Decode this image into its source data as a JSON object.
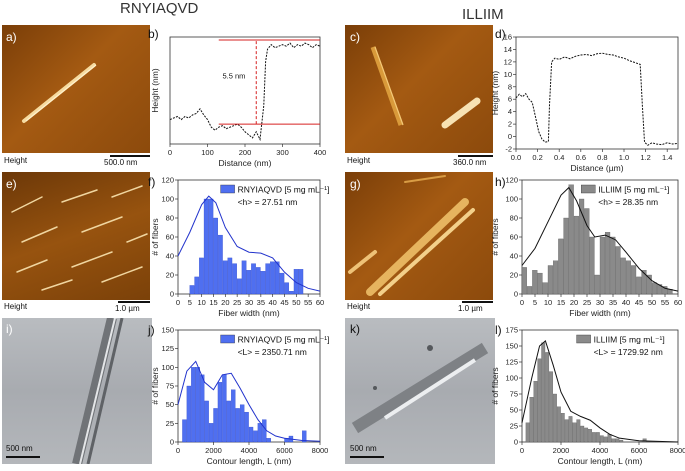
{
  "headers": {
    "left": "RNYIAQVD",
    "right": "ILLIIM"
  },
  "panels": {
    "a": {
      "letter": "a)",
      "caption": "Height",
      "scale": "500.0 nm"
    },
    "b": {
      "letter": "b)",
      "annotation": "5.5 nm"
    },
    "c": {
      "letter": "c)",
      "caption": "Height",
      "scale": "360.0 nm"
    },
    "d": {
      "letter": "d)"
    },
    "e": {
      "letter": "e)",
      "caption": "Height",
      "scale": "1.0 µm"
    },
    "f": {
      "letter": "f)"
    },
    "g": {
      "letter": "g)",
      "caption": "Height",
      "scale": "1.0 µm"
    },
    "h": {
      "letter": "h)"
    },
    "i": {
      "letter": "i)",
      "scale": "500 nm"
    },
    "j": {
      "letter": "j)"
    },
    "k": {
      "letter": "k)",
      "scale": "500 nm"
    },
    "l": {
      "letter": "l)"
    }
  },
  "colors": {
    "blue_bar": "#4f6ff0",
    "gray_bar": "#8a8a8a",
    "fit_blue": "#2233cc",
    "fit_black": "#111111",
    "annot_red": "#d62222"
  },
  "chart_data": [
    {
      "id": "b",
      "type": "line",
      "xlabel": "Distance (nm)",
      "ylabel": "Height (nm)",
      "xlim": [
        0,
        400
      ],
      "ylim": [
        0,
        7
      ],
      "xticks": [
        0,
        100,
        200,
        300,
        400
      ],
      "x": [
        0,
        10,
        20,
        30,
        40,
        50,
        60,
        70,
        80,
        90,
        100,
        110,
        120,
        130,
        140,
        150,
        160,
        170,
        180,
        190,
        200,
        210,
        220,
        230,
        240,
        250,
        255,
        260,
        270,
        280,
        290,
        300,
        310,
        320,
        330,
        340,
        350,
        360,
        370,
        380,
        390,
        400
      ],
      "y": [
        1.6,
        1.7,
        1.8,
        1.6,
        1.8,
        1.7,
        1.9,
        2.0,
        2.3,
        1.9,
        1.6,
        1.1,
        0.9,
        1.1,
        1.2,
        1.0,
        1.1,
        1.2,
        1.3,
        1.1,
        0.8,
        0.6,
        0.4,
        0.8,
        0.3,
        2.5,
        5.4,
        6.2,
        6.5,
        6.3,
        6.4,
        6.5,
        6.4,
        6.6,
        6.3,
        6.5,
        6.4,
        6.6,
        6.5,
        6.3,
        6.5,
        6.4
      ]
    },
    {
      "id": "d",
      "type": "line",
      "xlabel": "Distance (µm)",
      "ylabel": "Height (nm)",
      "xlim": [
        0,
        1.5
      ],
      "ylim": [
        -2,
        16
      ],
      "xticks": [
        0.0,
        0.2,
        0.4,
        0.6,
        0.8,
        1.0,
        1.2,
        1.4
      ],
      "yticks": [
        -2,
        0,
        2,
        4,
        6,
        8,
        10,
        12,
        14,
        16
      ],
      "x": [
        0.0,
        0.03,
        0.06,
        0.09,
        0.12,
        0.15,
        0.18,
        0.21,
        0.24,
        0.27,
        0.3,
        0.31,
        0.33,
        0.36,
        0.4,
        0.45,
        0.5,
        0.55,
        0.6,
        0.65,
        0.7,
        0.75,
        0.8,
        0.85,
        0.9,
        0.95,
        1.0,
        1.05,
        1.1,
        1.15,
        1.17,
        1.19,
        1.22,
        1.26,
        1.3,
        1.35,
        1.4,
        1.45,
        1.5
      ],
      "y": [
        6.2,
        6.8,
        6.4,
        6.9,
        6.0,
        5.5,
        3.2,
        0.8,
        -0.4,
        -0.9,
        -0.8,
        5.0,
        12.0,
        12.6,
        12.4,
        12.8,
        12.5,
        12.9,
        13.1,
        13.2,
        13.0,
        13.3,
        13.4,
        13.2,
        13.1,
        12.8,
        12.6,
        12.2,
        11.9,
        11.6,
        5.0,
        -0.9,
        -1.4,
        -1.0,
        -1.2,
        -1.3,
        -1.0,
        -1.2,
        -1.1
      ]
    },
    {
      "id": "f",
      "type": "bar",
      "legend": "RNYIAQVD [5 mg mL⁻¹]",
      "annotation": "<h> = 27.51 nm",
      "xlabel": "Fiber width (nm)",
      "ylabel": "# of fibers",
      "xlim": [
        0,
        60
      ],
      "ylim": [
        0,
        120
      ],
      "xticks": [
        0,
        5,
        10,
        15,
        20,
        25,
        30,
        35,
        40,
        45,
        50,
        55,
        60
      ],
      "yticks": [
        0,
        20,
        40,
        60,
        80,
        100,
        120
      ],
      "bin_width": 2,
      "bin_starts": [
        5,
        7,
        9,
        11,
        13,
        15,
        17,
        19,
        21,
        23,
        25,
        27,
        29,
        31,
        33,
        35,
        37,
        39,
        41,
        43,
        45,
        47,
        49,
        51
      ],
      "values": [
        9,
        18,
        38,
        100,
        100,
        80,
        62,
        35,
        38,
        32,
        16,
        35,
        25,
        32,
        28,
        24,
        32,
        34,
        34,
        22,
        12,
        3,
        26,
        26
      ],
      "fit_x": [
        0,
        5,
        10,
        13,
        16,
        20,
        25,
        30,
        35,
        40,
        45,
        50,
        55,
        60
      ],
      "fit_y": [
        40,
        65,
        94,
        103,
        96,
        70,
        50,
        44,
        43,
        38,
        23,
        12,
        6,
        3
      ]
    },
    {
      "id": "h",
      "type": "bar",
      "legend": "ILLIIM [5 mg mL⁻¹]",
      "annotation": "<h> = 28.35 nm",
      "xlabel": "Fiber width (nm)",
      "ylabel": "# of fibers",
      "xlim": [
        0,
        60
      ],
      "ylim": [
        0,
        120
      ],
      "xticks": [
        0,
        5,
        10,
        15,
        20,
        25,
        30,
        35,
        40,
        45,
        50,
        55,
        60
      ],
      "yticks": [
        0,
        20,
        40,
        60,
        80,
        100,
        120
      ],
      "bin_width": 2,
      "bin_starts": [
        0,
        2,
        4,
        6,
        8,
        10,
        12,
        14,
        16,
        18,
        20,
        22,
        24,
        26,
        28,
        30,
        32,
        34,
        36,
        38,
        40,
        42,
        44,
        46,
        48,
        50,
        52,
        54,
        56
      ],
      "values": [
        28,
        8,
        25,
        22,
        12,
        30,
        35,
        58,
        80,
        115,
        82,
        100,
        90,
        60,
        20,
        60,
        65,
        60,
        50,
        38,
        35,
        30,
        18,
        25,
        20,
        12,
        10,
        8,
        5
      ],
      "fit_x": [
        0,
        5,
        10,
        15,
        18,
        21,
        25,
        28,
        32,
        36,
        40,
        45,
        50,
        55,
        60
      ],
      "fit_y": [
        30,
        48,
        76,
        104,
        112,
        98,
        72,
        60,
        62,
        57,
        44,
        27,
        14,
        6,
        3
      ]
    },
    {
      "id": "j",
      "type": "bar",
      "legend": "RNYIAQVD [5 mg mL⁻¹]",
      "annotation": "<L> = 2350.71 nm",
      "xlabel": "Contour length, L (nm)",
      "ylabel": "# of fibers",
      "xlim": [
        0,
        8000
      ],
      "ylim": [
        0,
        150
      ],
      "xticks": [
        0,
        2000,
        4000,
        6000,
        8000
      ],
      "yticks": [
        0,
        25,
        50,
        75,
        100,
        125,
        150
      ],
      "bin_width": 250,
      "bin_starts": [
        250,
        500,
        750,
        1000,
        1250,
        1500,
        1750,
        2000,
        2250,
        2500,
        2750,
        3000,
        3250,
        3500,
        3750,
        4000,
        4250,
        4500,
        4750,
        5000,
        6000,
        6250,
        7000
      ],
      "values": [
        30,
        75,
        100,
        100,
        90,
        55,
        25,
        45,
        80,
        90,
        55,
        70,
        45,
        50,
        40,
        20,
        15,
        25,
        30,
        5,
        5,
        8,
        15
      ],
      "fit_x": [
        0,
        500,
        1000,
        1500,
        2000,
        2500,
        3000,
        3500,
        4000,
        4500,
        5000,
        5500,
        6000,
        7000,
        8000
      ],
      "fit_y": [
        50,
        95,
        108,
        80,
        70,
        90,
        92,
        72,
        50,
        30,
        15,
        8,
        5,
        2,
        1
      ]
    },
    {
      "id": "l",
      "type": "bar",
      "legend": "ILLIIM [5 mg mL⁻¹]",
      "annotation": "<L> = 1729.92 nm",
      "xlabel": "Contour length, L (nm)",
      "ylabel": "# of fibers",
      "xlim": [
        0,
        8000
      ],
      "ylim": [
        0,
        175
      ],
      "xticks": [
        0,
        2000,
        4000,
        6000,
        8000
      ],
      "yticks": [
        0,
        25,
        50,
        75,
        100,
        125,
        150,
        175
      ],
      "bin_width": 200,
      "bin_starts": [
        200,
        400,
        600,
        800,
        1000,
        1200,
        1400,
        1600,
        1800,
        2000,
        2200,
        2400,
        2600,
        2800,
        3000,
        3200,
        3400,
        3600,
        3800,
        4000,
        4200,
        4400,
        4600,
        4800,
        5000,
        6200
      ],
      "values": [
        30,
        70,
        95,
        130,
        155,
        140,
        110,
        75,
        55,
        45,
        35,
        40,
        30,
        35,
        25,
        22,
        20,
        15,
        15,
        10,
        8,
        12,
        5,
        5,
        3,
        5
      ],
      "fit_x": [
        0,
        500,
        900,
        1200,
        1600,
        2000,
        2500,
        3000,
        3500,
        4000,
        4500,
        5000,
        6000,
        7000,
        8000
      ],
      "fit_y": [
        30,
        100,
        150,
        158,
        120,
        78,
        48,
        40,
        34,
        22,
        12,
        6,
        2,
        1,
        0
      ]
    }
  ]
}
